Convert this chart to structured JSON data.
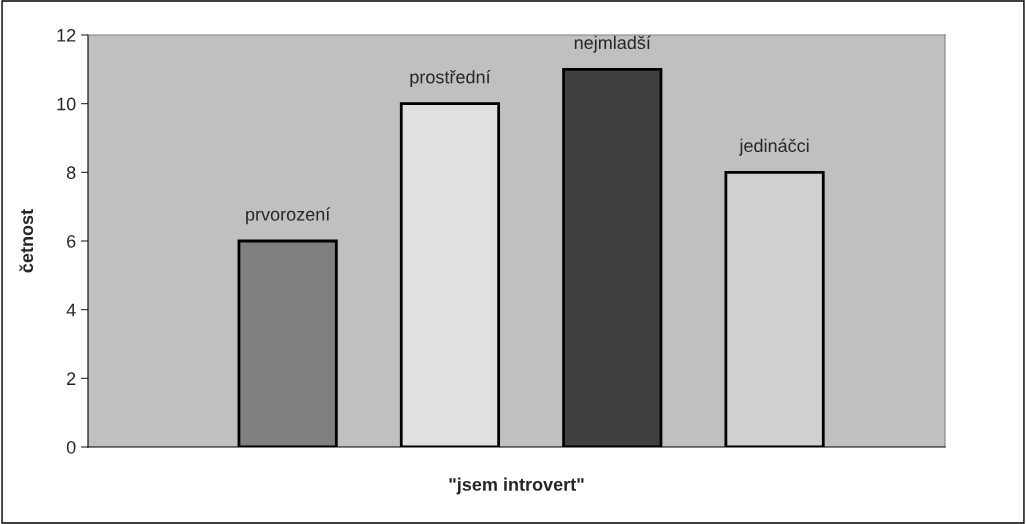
{
  "chart_data": {
    "type": "bar",
    "categories": [
      "prvorození",
      "prostřední",
      "nejmladší",
      "jedináčci"
    ],
    "values": [
      6,
      10,
      11,
      8
    ],
    "colors": [
      "#808080",
      "#e0e0e0",
      "#404040",
      "#d0d0d0"
    ],
    "xlabel": "\"jsem introvert\"",
    "ylabel": "četnost",
    "ylim": [
      0,
      12
    ],
    "yticks": [
      0,
      2,
      4,
      6,
      8,
      10,
      12
    ],
    "tick_labels": "y",
    "grid": false,
    "legend": false
  }
}
